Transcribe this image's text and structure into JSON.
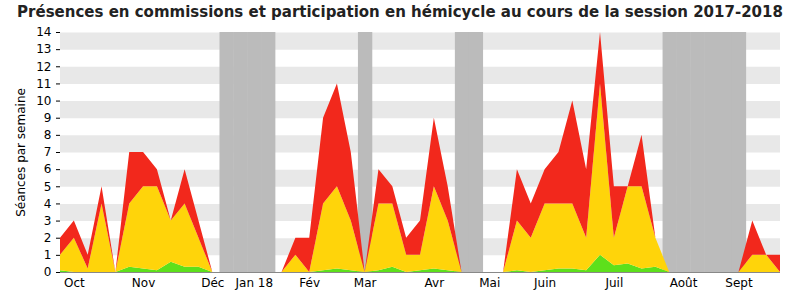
{
  "chart_data": {
    "type": "area",
    "stacked": true,
    "title": "Présences en commissions et participation en hémicycle au cours de la session 2017-2018",
    "y_label": "Séances par semaine",
    "categories": [
      null,
      "Oct",
      null,
      null,
      null,
      null,
      "Nov",
      null,
      null,
      null,
      null,
      "Déc",
      null,
      null,
      "Jan 18",
      null,
      null,
      null,
      "Fév",
      null,
      null,
      null,
      "Mar",
      null,
      null,
      null,
      null,
      "Avr",
      null,
      null,
      null,
      "Mai",
      null,
      null,
      null,
      "Juin",
      null,
      null,
      null,
      null,
      "Juil",
      null,
      null,
      null,
      null,
      "Août",
      null,
      null,
      null,
      "Sept",
      null,
      null,
      null
    ],
    "series": [
      {
        "color": "#5de01b",
        "values": [
          0.1,
          0,
          0,
          0,
          0,
          0.3,
          0.2,
          0.1,
          0.6,
          0.3,
          0.3,
          0,
          0,
          0,
          0,
          0,
          0,
          0,
          0,
          0.1,
          0.2,
          0.1,
          0,
          0.1,
          0.3,
          0,
          0.1,
          0.2,
          0.1,
          0,
          0,
          0,
          0,
          0.1,
          0,
          0.1,
          0.2,
          0.2,
          0.1,
          1,
          0.4,
          0.5,
          0.2,
          0.3,
          0,
          0,
          0,
          0,
          0,
          0,
          0,
          0,
          0
        ]
      },
      {
        "color": "#ffd40a",
        "values": [
          0.9,
          2,
          0.2,
          4,
          0,
          3.7,
          4.8,
          4.9,
          2.4,
          3.7,
          1.7,
          0,
          0,
          0,
          0,
          0,
          0,
          1,
          0,
          3.9,
          4.8,
          2.9,
          0,
          3.9,
          3.7,
          1,
          0.9,
          4.8,
          2.9,
          0,
          0,
          0,
          0,
          2.9,
          2,
          3.9,
          3.8,
          3.8,
          1.9,
          10,
          1.6,
          4.5,
          4.8,
          1.7,
          0,
          0,
          0,
          0,
          0,
          0,
          1,
          1,
          0
        ]
      },
      {
        "color": "#f2281c",
        "values": [
          1,
          1,
          0.8,
          1,
          0,
          3,
          2,
          1,
          0,
          2,
          1,
          0,
          0,
          0,
          0,
          0,
          0,
          1,
          2,
          5,
          6,
          4,
          0,
          2,
          1,
          1,
          2,
          4,
          2,
          0,
          0,
          0,
          0,
          3,
          2,
          2,
          3,
          6,
          4,
          3,
          3,
          0,
          3,
          0,
          0,
          0,
          0,
          0,
          0,
          0,
          2,
          0,
          1
        ]
      }
    ],
    "bands": [
      [
        12,
        15
      ],
      [
        22,
        22
      ],
      [
        29,
        30
      ],
      [
        44,
        49
      ]
    ],
    "ylim": [
      0,
      14
    ],
    "yticks": [
      0,
      1,
      2,
      3,
      4,
      5,
      6,
      7,
      8,
      9,
      10,
      11,
      12,
      13,
      14
    ],
    "grid": true
  }
}
